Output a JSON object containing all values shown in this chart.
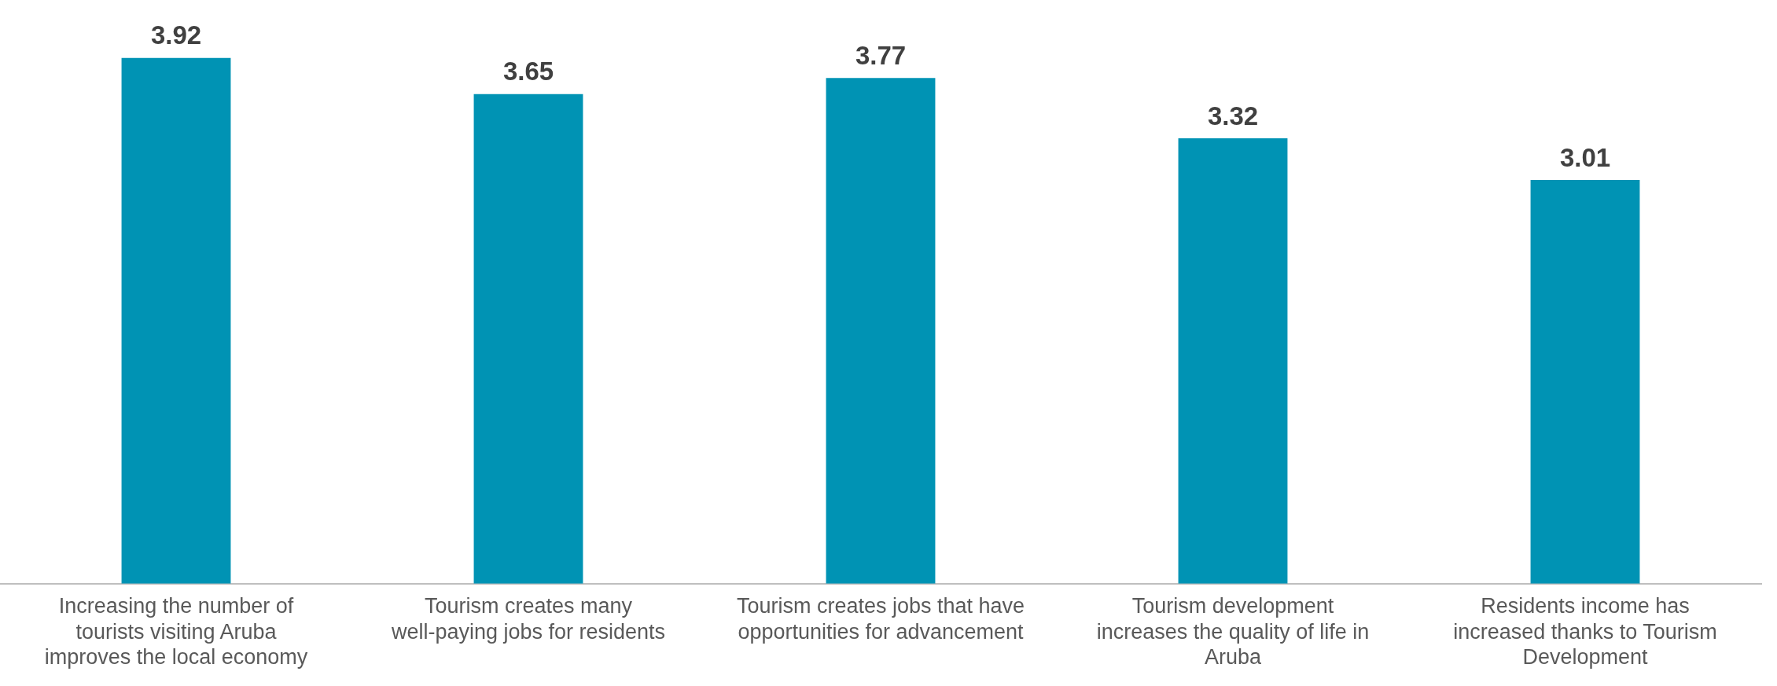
{
  "chart_data": {
    "type": "bar",
    "categories": [
      "Increasing the number of tourists visiting Aruba improves the local economy",
      "Tourism creates many well-paying jobs for residents",
      "Tourism creates jobs that have opportunities for advancement",
      "Tourism development increases the quality of life in Aruba",
      "Residents income has increased thanks to Tourism Development"
    ],
    "values": [
      3.92,
      3.65,
      3.77,
      3.32,
      3.01
    ],
    "color": "#0093b4",
    "data_labels": true,
    "grid": false,
    "legend": false
  }
}
